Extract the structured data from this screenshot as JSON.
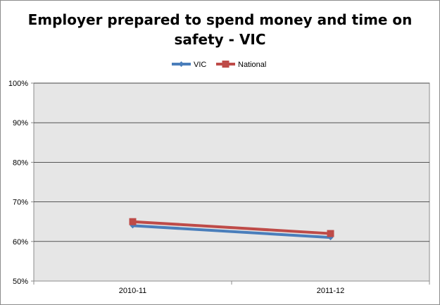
{
  "chart_data": {
    "type": "line",
    "title_lines": [
      "Employer prepared to spend money and time on",
      "safety - VIC"
    ],
    "categories": [
      "2010-11",
      "2011-12"
    ],
    "series": [
      {
        "name": "VIC",
        "values": [
          64,
          61
        ],
        "color": "#4a7ebb"
      },
      {
        "name": "National",
        "values": [
          65,
          62
        ],
        "color": "#be4b48"
      }
    ],
    "ylim": [
      50,
      100
    ],
    "yticks": [
      50,
      60,
      70,
      80,
      90,
      100
    ],
    "ytick_labels": [
      "50%",
      "60%",
      "70%",
      "80%",
      "90%",
      "100%"
    ],
    "grid": true,
    "legend": "top",
    "plot_background": "#e6e6e6"
  }
}
